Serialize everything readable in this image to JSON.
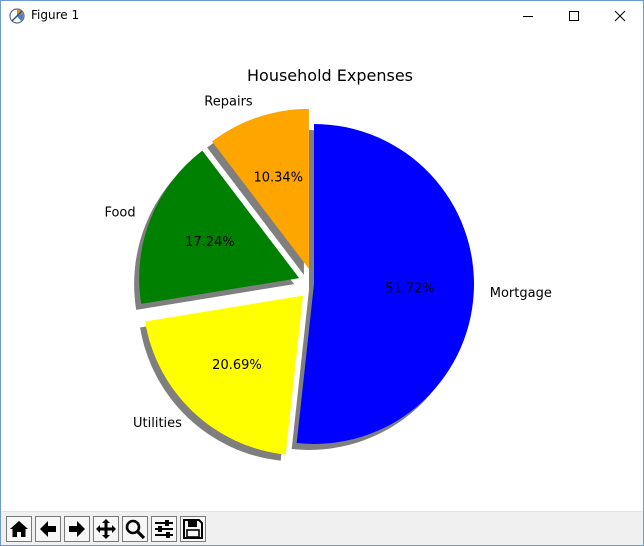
{
  "window": {
    "title": "Figure 1",
    "controls": {
      "minimize": "minimize",
      "maximize": "maximize",
      "close": "close"
    }
  },
  "toolbar": {
    "buttons": [
      {
        "name": "home-button",
        "icon": "home-icon"
      },
      {
        "name": "back-button",
        "icon": "arrow-left-icon"
      },
      {
        "name": "forward-button",
        "icon": "arrow-right-icon"
      },
      {
        "name": "pan-button",
        "icon": "move-icon"
      },
      {
        "name": "zoom-button",
        "icon": "magnifier-icon"
      },
      {
        "name": "configure-subplots-button",
        "icon": "sliders-icon"
      },
      {
        "name": "save-button",
        "icon": "floppy-disk-icon"
      }
    ]
  },
  "chart_data": {
    "type": "pie",
    "title": "Household Expenses",
    "labels": [
      "Repairs",
      "Food",
      "Utilities",
      "Mortgage"
    ],
    "values": [
      10.34,
      17.24,
      20.69,
      51.72
    ],
    "percent_labels": [
      "10.34%",
      "17.24%",
      "20.69%",
      "51.72%"
    ],
    "colors": [
      "#ffa500",
      "#008000",
      "#ffff00",
      "#0000ff"
    ],
    "explode": [
      0.1,
      0.1,
      0.1,
      0.0
    ],
    "startangle": 90,
    "shadow": true,
    "shadow_color": "#7f7f7f"
  }
}
